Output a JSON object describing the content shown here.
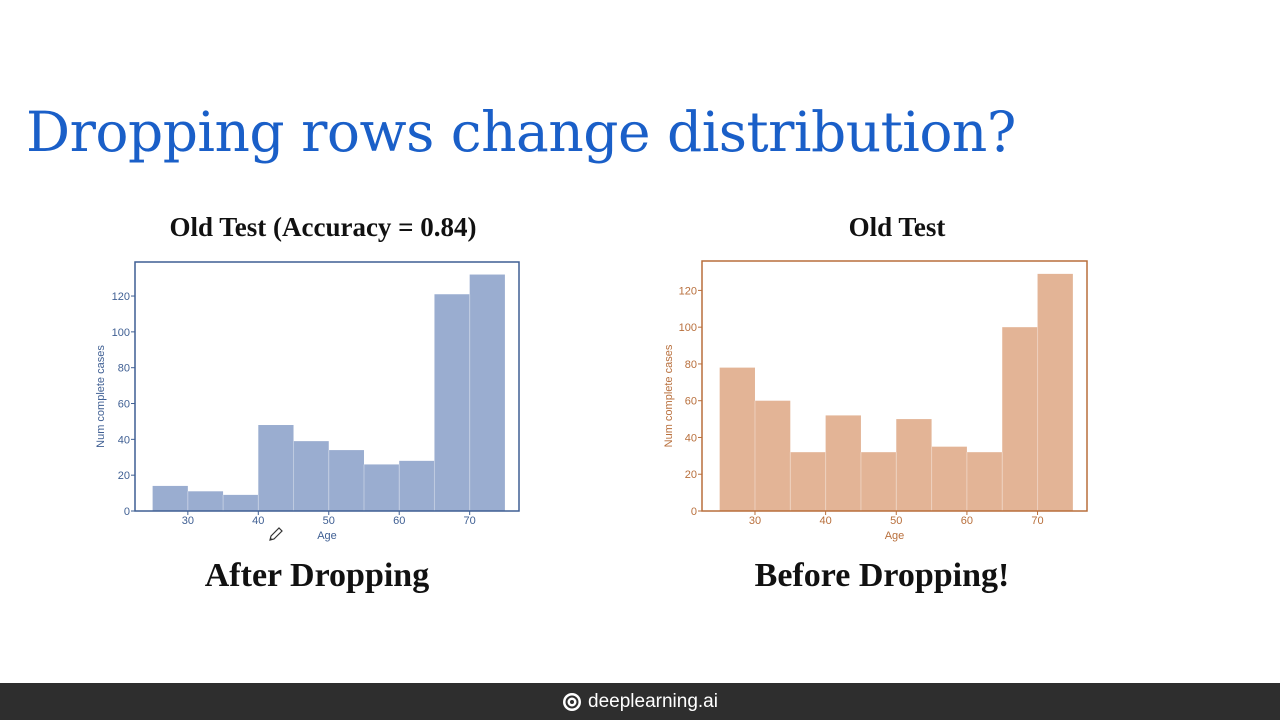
{
  "slide": {
    "title": "Dropping rows change distribution?"
  },
  "charts": [
    {
      "title": "Old Test  (Accuracy = 0.84)",
      "caption": "After Dropping"
    },
    {
      "title": "Old Test",
      "caption": "Before Dropping!"
    }
  ],
  "footer": {
    "brand": "deeplearning.ai",
    "logo_icon": "deeplearning-logo-icon"
  },
  "chart_data": [
    {
      "type": "bar",
      "title": "Old Test  (Accuracy = 0.84)",
      "xlabel": "Age",
      "ylabel": "Num complete cases",
      "bin_edges": [
        25,
        30,
        35,
        40,
        45,
        50,
        55,
        60,
        65,
        70,
        75
      ],
      "values": [
        14,
        11,
        9,
        48,
        39,
        34,
        26,
        28,
        121,
        132
      ],
      "xticks": [
        30,
        40,
        50,
        60,
        70
      ],
      "yticks": [
        0,
        20,
        40,
        60,
        80,
        100,
        120
      ],
      "xlim": [
        22.5,
        77
      ],
      "ylim": [
        0,
        139
      ],
      "color": "#9aadd0",
      "axis_color": "#3f5f93",
      "frame": true,
      "grid": false
    },
    {
      "type": "bar",
      "title": "Old Test",
      "xlabel": "Age",
      "ylabel": "Num complete cases",
      "bin_edges": [
        25,
        30,
        35,
        40,
        45,
        50,
        55,
        60,
        65,
        70,
        75
      ],
      "values": [
        78,
        60,
        32,
        52,
        32,
        50,
        35,
        32,
        100,
        129
      ],
      "xticks": [
        30,
        40,
        50,
        60,
        70
      ],
      "yticks": [
        0,
        20,
        40,
        60,
        80,
        100,
        120
      ],
      "xlim": [
        22.5,
        77
      ],
      "ylim": [
        0,
        136
      ],
      "color": "#e3b496",
      "axis_color": "#b86f3c",
      "frame": true,
      "grid": false
    }
  ]
}
